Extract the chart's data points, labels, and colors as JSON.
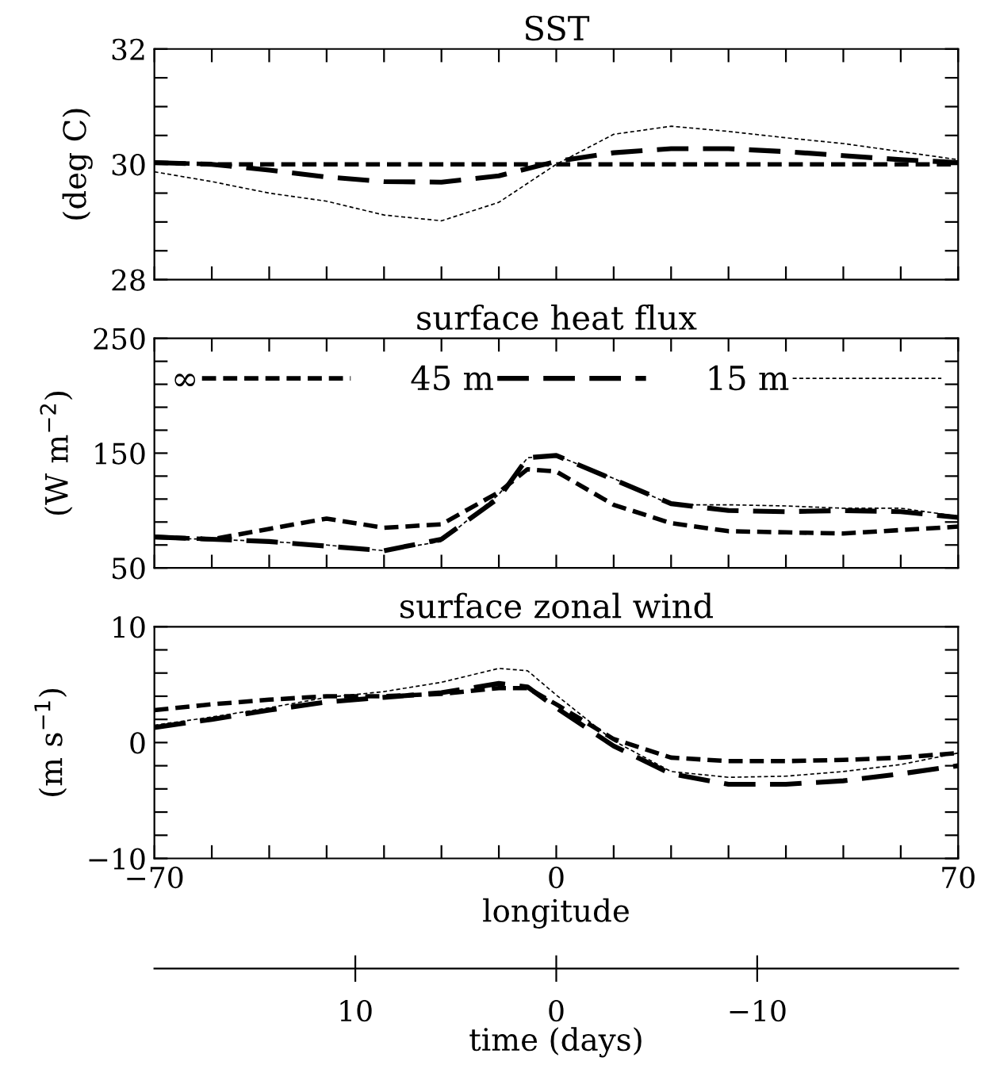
{
  "chart_data": [
    {
      "type": "line",
      "title": "SST",
      "ylabel": "(deg C)",
      "x": [
        -70,
        -60,
        -50,
        -40,
        -30,
        -20,
        -10,
        0,
        10,
        20,
        30,
        40,
        50,
        60,
        70
      ],
      "series": [
        {
          "color": "#000000",
          "line_style": "dashed",
          "values": [
            30.03,
            30.0,
            30.0,
            30.0,
            30.0,
            30.0,
            30.0,
            30.0,
            30.0,
            30.0,
            30.0,
            30.0,
            30.0,
            30.0,
            30.0
          ]
        },
        {
          "color": "#000000",
          "line_style": "dashed",
          "values": [
            30.03,
            30.0,
            29.9,
            29.78,
            29.7,
            29.69,
            29.8,
            30.05,
            30.2,
            30.27,
            30.27,
            30.22,
            30.15,
            30.08,
            30.03
          ]
        },
        {
          "color": "#000000",
          "line_style": "dashed",
          "values": [
            29.87,
            29.7,
            29.5,
            29.36,
            29.12,
            29.02,
            29.34,
            30.0,
            30.52,
            30.66,
            30.57,
            30.46,
            30.36,
            30.22,
            30.08
          ]
        }
      ],
      "xlim": [
        -70,
        70
      ],
      "xticks": [
        -70,
        {
          "value": -60,
          "label": null
        },
        {
          "value": -50,
          "label": null
        },
        {
          "value": -40,
          "label": null
        },
        {
          "value": -30,
          "label": null
        },
        {
          "value": -20,
          "label": null
        },
        {
          "value": -10,
          "label": null
        },
        0,
        {
          "value": 10,
          "label": null
        },
        {
          "value": 20,
          "label": null
        },
        {
          "value": 30,
          "label": null
        },
        {
          "value": 40,
          "label": null
        },
        {
          "value": 50,
          "label": null
        },
        {
          "value": 60,
          "label": null
        },
        70
      ],
      "ylim": [
        28,
        32
      ],
      "yticks": [
        28,
        {
          "value": 28.5,
          "label": null
        },
        {
          "value": 29,
          "label": null
        },
        {
          "value": 29.5,
          "label": null
        },
        30,
        {
          "value": 30.5,
          "label": null
        },
        {
          "value": 31,
          "label": null
        },
        {
          "value": 31.5,
          "label": null
        },
        32
      ],
      "tick_labels": "y",
      "legend": false,
      "grid": false
    },
    {
      "type": "line",
      "title": "surface heat flux",
      "ylabel": "(W m$^{−2}$)",
      "x": [
        -70,
        -60,
        -50,
        -40,
        -30,
        -20,
        -10,
        -5,
        0,
        10,
        20,
        30,
        40,
        50,
        60,
        70
      ],
      "series": [
        {
          "name": "∞",
          "color": "#000000",
          "line_style": "dashed",
          "values": [
            77,
            75,
            84,
            93,
            85,
            88,
            116,
            136,
            134,
            105,
            89,
            82,
            81,
            80,
            83,
            86
          ]
        },
        {
          "name": "45 m",
          "color": "#000000",
          "line_style": "dashed",
          "values": [
            77,
            75,
            73,
            69,
            65,
            75,
            111,
            146,
            148,
            127,
            106,
            100,
            99,
            100,
            99,
            94
          ]
        },
        {
          "name": "15 m",
          "color": "#000000",
          "line_style": "dashed",
          "values": [
            76,
            75,
            73,
            70,
            65,
            73,
            114,
            146,
            148,
            128,
            105,
            105,
            104,
            102,
            102,
            95
          ]
        }
      ],
      "xlim": [
        -70,
        70
      ],
      "xticks": [
        -70,
        {
          "value": -60,
          "label": null
        },
        {
          "value": -50,
          "label": null
        },
        {
          "value": -40,
          "label": null
        },
        {
          "value": -30,
          "label": null
        },
        {
          "value": -20,
          "label": null
        },
        {
          "value": -10,
          "label": null
        },
        0,
        {
          "value": 10,
          "label": null
        },
        {
          "value": 20,
          "label": null
        },
        {
          "value": 30,
          "label": null
        },
        {
          "value": 40,
          "label": null
        },
        {
          "value": 50,
          "label": null
        },
        {
          "value": 60,
          "label": null
        },
        70
      ],
      "ylim": [
        50,
        250
      ],
      "yticks": [
        50,
        {
          "value": 70,
          "label": null
        },
        {
          "value": 90,
          "label": null
        },
        {
          "value": 110,
          "label": null
        },
        {
          "value": 130,
          "label": null
        },
        150,
        {
          "value": 170,
          "label": null
        },
        {
          "value": 190,
          "label": null
        },
        {
          "value": 210,
          "label": null
        },
        {
          "value": 230,
          "label": null
        },
        250
      ],
      "tick_labels": "y",
      "legend": "top",
      "grid": false
    },
    {
      "type": "line",
      "title": "surface zonal wind",
      "ylabel": "(m s$^{−1}$)",
      "xlabel": "longitude",
      "x": [
        -70,
        -60,
        -50,
        -40,
        -30,
        -20,
        -10,
        -5,
        0,
        10,
        20,
        30,
        40,
        50,
        60,
        70
      ],
      "series": [
        {
          "color": "#000000",
          "line_style": "dashed",
          "values": [
            2.8,
            3.3,
            3.7,
            4.0,
            4.0,
            4.2,
            4.7,
            4.7,
            3.3,
            0.3,
            -1.3,
            -1.6,
            -1.6,
            -1.5,
            -1.3,
            -0.9
          ]
        },
        {
          "color": "#000000",
          "line_style": "dashed",
          "values": [
            1.3,
            2.0,
            2.8,
            3.5,
            3.9,
            4.3,
            5.1,
            4.8,
            3.0,
            -0.3,
            -2.7,
            -3.6,
            -3.6,
            -3.3,
            -2.7,
            -2.0
          ]
        },
        {
          "color": "#000000",
          "line_style": "dashed",
          "values": [
            1.5,
            2.2,
            3.0,
            3.9,
            4.4,
            5.2,
            6.4,
            6.2,
            4.1,
            0.15,
            -2.5,
            -3.0,
            -2.9,
            -2.5,
            -1.9,
            -0.9
          ]
        }
      ],
      "xlim": [
        -70,
        70
      ],
      "xticks": [
        -70,
        {
          "value": -60,
          "label": null
        },
        {
          "value": -50,
          "label": null
        },
        {
          "value": -40,
          "label": null
        },
        {
          "value": -30,
          "label": null
        },
        {
          "value": -20,
          "label": null
        },
        {
          "value": -10,
          "label": null
        },
        0,
        {
          "value": 10,
          "label": null
        },
        {
          "value": 20,
          "label": null
        },
        {
          "value": 30,
          "label": null
        },
        {
          "value": 40,
          "label": null
        },
        {
          "value": 50,
          "label": null
        },
        {
          "value": 60,
          "label": null
        },
        70
      ],
      "ylim": [
        -10,
        10
      ],
      "yticks": [
        -10,
        {
          "value": -8,
          "label": null
        },
        {
          "value": -6,
          "label": null
        },
        {
          "value": -4,
          "label": null
        },
        {
          "value": -2,
          "label": null
        },
        0,
        {
          "value": 2,
          "label": null
        },
        {
          "value": 4,
          "label": null
        },
        {
          "value": 6,
          "label": null
        },
        {
          "value": 8,
          "label": null
        },
        10
      ],
      "x2lim": [
        20,
        -20
      ],
      "x2ticks": [
        10,
        0,
        -10
      ],
      "x2label": "time (days)",
      "legend": false,
      "grid": false
    }
  ]
}
